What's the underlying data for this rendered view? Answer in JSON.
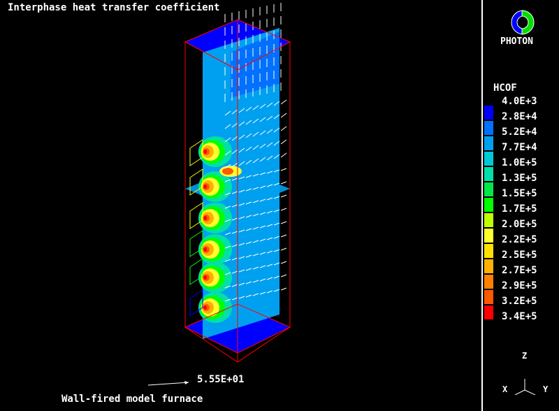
{
  "title": "Interphase heat transfer coefficient",
  "caption": "Wall-fired model furnace",
  "vector_scale": {
    "value": "5.55E+01"
  },
  "logo": {
    "text": "PHOTON",
    "colors": [
      "#0000ff",
      "#00e000"
    ]
  },
  "legend": {
    "variable": "HCOF",
    "labels": [
      "4.0E+3",
      "2.8E+4",
      "5.2E+4",
      "7.7E+4",
      "1.0E+5",
      "1.3E+5",
      "1.5E+5",
      "1.7E+5",
      "2.0E+5",
      "2.2E+5",
      "2.5E+5",
      "2.7E+5",
      "2.9E+5",
      "3.2E+5",
      "3.4E+5"
    ],
    "colors": [
      "#0000ff",
      "#0070ff",
      "#00a0f0",
      "#00c8d8",
      "#00e0a8",
      "#00e848",
      "#00ff00",
      "#c0ff00",
      "#ffff30",
      "#ffe000",
      "#ffb000",
      "#ff8000",
      "#ff5800",
      "#ff0000"
    ]
  },
  "axes": {
    "z": "Z",
    "x": "X",
    "y": "Y"
  }
}
